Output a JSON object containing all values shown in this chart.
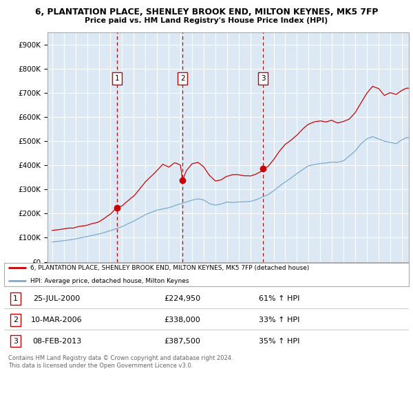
{
  "title1": "6, PLANTATION PLACE, SHENLEY BROOK END, MILTON KEYNES, MK5 7FP",
  "title2": "Price paid vs. HM Land Registry's House Price Index (HPI)",
  "bg_color": "#dce9f5",
  "red_color": "#cc0000",
  "blue_color": "#7aaacc",
  "sale_dates": [
    2000.57,
    2006.19,
    2013.1
  ],
  "sale_prices": [
    224950,
    338000,
    387500
  ],
  "sale_labels": [
    "1",
    "2",
    "3"
  ],
  "legend_line1": "6, PLANTATION PLACE, SHENLEY BROOK END, MILTON KEYNES, MK5 7FP (detached house)",
  "legend_line2": "HPI: Average price, detached house, Milton Keynes",
  "table_rows": [
    [
      "1",
      "25-JUL-2000",
      "£224,950",
      "61% ↑ HPI"
    ],
    [
      "2",
      "10-MAR-2006",
      "£338,000",
      "33% ↑ HPI"
    ],
    [
      "3",
      "08-FEB-2013",
      "£387,500",
      "35% ↑ HPI"
    ]
  ],
  "footer": "Contains HM Land Registry data © Crown copyright and database right 2024.\nThis data is licensed under the Open Government Licence v3.0.",
  "ylim": [
    0,
    950000
  ],
  "yticks": [
    0,
    100000,
    200000,
    300000,
    400000,
    500000,
    600000,
    700000,
    800000,
    900000
  ]
}
